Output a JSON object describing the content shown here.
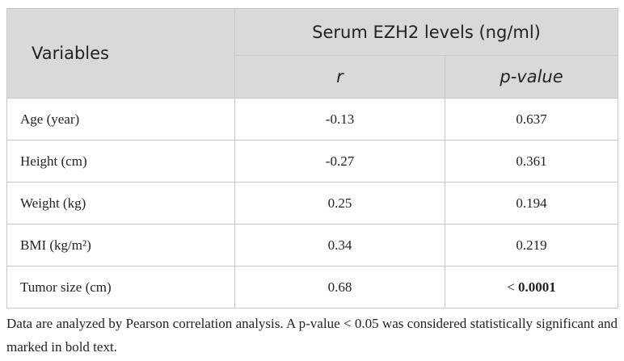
{
  "table": {
    "header": {
      "variables": "Variables",
      "group": "Serum EZH2 levels (ng/ml)",
      "columns": [
        "r",
        "p-value"
      ]
    },
    "rows": [
      [
        "Age (year)",
        "-0.13",
        "0.637"
      ],
      [
        "Height (cm)",
        "-0.27",
        "0.361"
      ],
      [
        "Weight (kg)",
        "0.25",
        "0.194"
      ],
      [
        "BMI (kg/m²)",
        "0.34",
        "0.219"
      ],
      [
        "Tumor size (cm)",
        "0.68",
        {
          "prefix": "<",
          "value": "0.0001"
        }
      ]
    ],
    "footnote": "Data are analyzed by Pearson correlation analysis. A p-value < 0.05 was considered statistically significant and marked in bold text."
  }
}
